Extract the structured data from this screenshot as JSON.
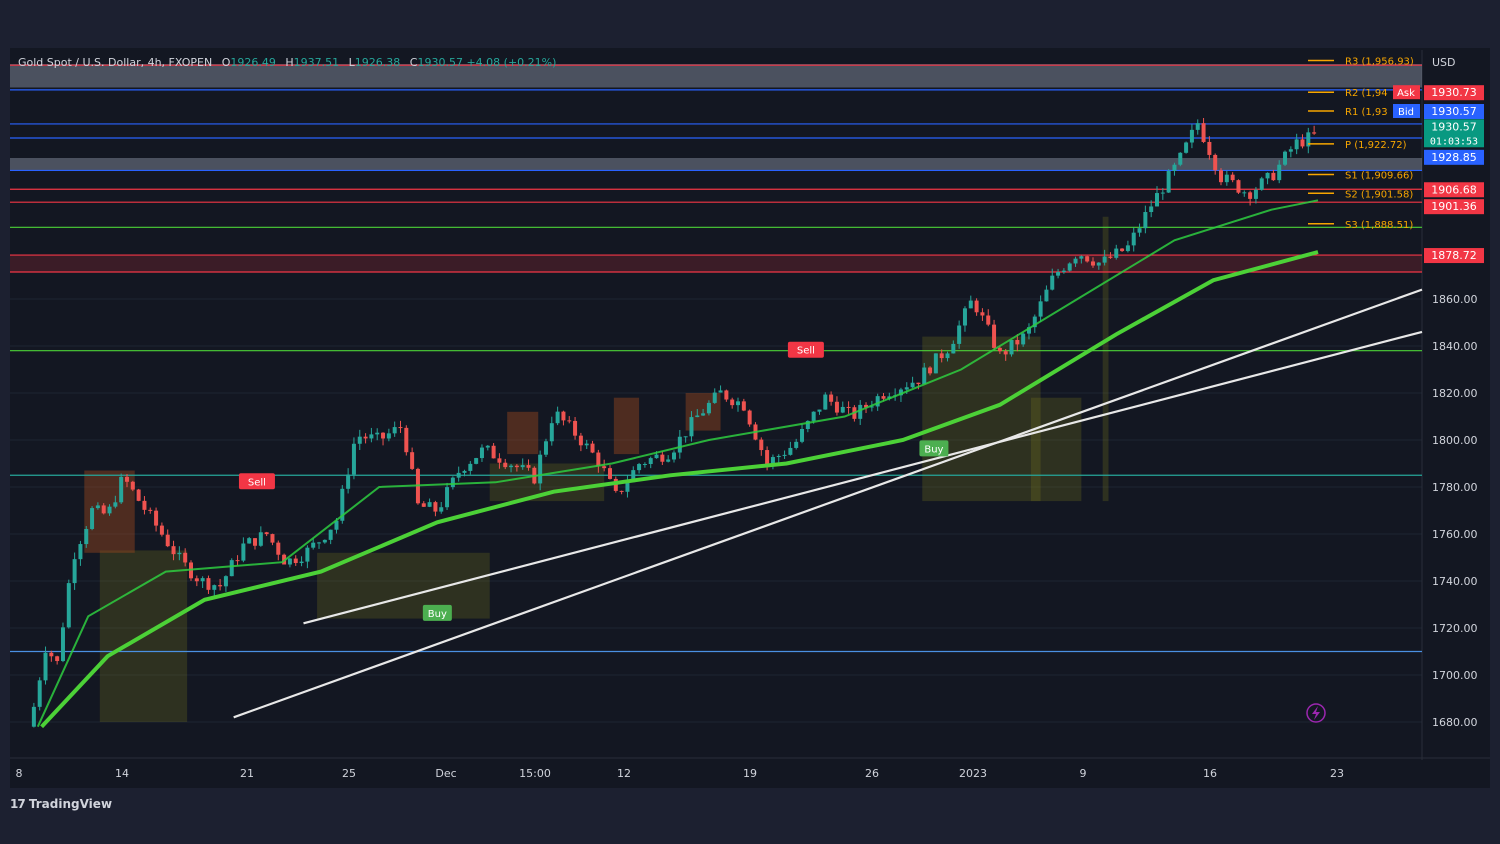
{
  "header": {
    "symbol": "Gold Spot / U.S. Dollar, 4h, FXOPEN",
    "open_label": "O",
    "open": "1926.49",
    "high_label": "H",
    "high": "1937.51",
    "low_label": "L",
    "low": "1926.38",
    "close_label": "C",
    "close": "1930.57",
    "change": "+4.08 (+0.21%)"
  },
  "currency": "USD",
  "brand": {
    "logo": "17",
    "name": "TradingView"
  },
  "colors": {
    "background": "#131722",
    "frame": "#1c2030",
    "up": "#26a69a",
    "down": "#ef5350",
    "resistance": "#f23645",
    "support_blue": "#2962ff",
    "pivot": "#f7a600",
    "ema": "#4cd137"
  },
  "chart_data": {
    "type": "line",
    "title": "Gold Spot / U.S. Dollar, 4h, FXOPEN",
    "x_ticks": [
      "8",
      "14",
      "21",
      "25",
      "Dec",
      "15:00",
      "12",
      "19",
      "26",
      "2023",
      "9",
      "16",
      "23"
    ],
    "y_ticks": [
      1680,
      1700,
      1720,
      1740,
      1760,
      1780,
      1800,
      1820,
      1840,
      1860
    ],
    "ylim": [
      1678,
      1970
    ],
    "price_path": [
      [
        0,
        1678
      ],
      [
        8,
        1712
      ],
      [
        14,
        1705
      ],
      [
        22,
        1750
      ],
      [
        32,
        1770
      ],
      [
        40,
        1768
      ],
      [
        48,
        1784
      ],
      [
        58,
        1772
      ],
      [
        68,
        1760
      ],
      [
        78,
        1748
      ],
      [
        88,
        1740
      ],
      [
        98,
        1738
      ],
      [
        110,
        1755
      ],
      [
        122,
        1760
      ],
      [
        132,
        1748
      ],
      [
        142,
        1752
      ],
      [
        150,
        1758
      ],
      [
        158,
        1766
      ],
      [
        168,
        1802
      ],
      [
        180,
        1800
      ],
      [
        192,
        1806
      ],
      [
        200,
        1772
      ],
      [
        210,
        1770
      ],
      [
        222,
        1788
      ],
      [
        234,
        1796
      ],
      [
        248,
        1790
      ],
      [
        260,
        1784
      ],
      [
        270,
        1812
      ],
      [
        282,
        1802
      ],
      [
        294,
        1790
      ],
      [
        302,
        1776
      ],
      [
        314,
        1790
      ],
      [
        330,
        1795
      ],
      [
        344,
        1810
      ],
      [
        356,
        1820
      ],
      [
        368,
        1815
      ],
      [
        380,
        1790
      ],
      [
        394,
        1798
      ],
      [
        410,
        1818
      ],
      [
        424,
        1810
      ],
      [
        440,
        1820
      ],
      [
        458,
        1826
      ],
      [
        474,
        1840
      ],
      [
        486,
        1860
      ],
      [
        500,
        1836
      ],
      [
        514,
        1845
      ],
      [
        528,
        1870
      ],
      [
        540,
        1880
      ],
      [
        552,
        1875
      ],
      [
        566,
        1882
      ],
      [
        578,
        1900
      ],
      [
        592,
        1918
      ],
      [
        602,
        1935
      ],
      [
        614,
        1912
      ],
      [
        628,
        1905
      ],
      [
        640,
        1912
      ],
      [
        652,
        1926
      ],
      [
        664,
        1930
      ]
    ],
    "series": [
      {
        "name": "",
        "values": [
          [
            6,
            1678
          ],
          [
            40,
            1708
          ],
          [
            90,
            1732
          ],
          [
            150,
            1744
          ],
          [
            210,
            1765
          ],
          [
            270,
            1778
          ],
          [
            330,
            1785
          ],
          [
            390,
            1790
          ],
          [
            450,
            1800
          ],
          [
            500,
            1815
          ],
          [
            560,
            1845
          ],
          [
            610,
            1868
          ],
          [
            664,
            1880
          ]
        ]
      },
      {
        "name": "",
        "values": [
          [
            4,
            1678
          ],
          [
            30,
            1725
          ],
          [
            70,
            1744
          ],
          [
            130,
            1748
          ],
          [
            180,
            1780
          ],
          [
            240,
            1782
          ],
          [
            300,
            1790
          ],
          [
            350,
            1800
          ],
          [
            420,
            1810
          ],
          [
            480,
            1830
          ],
          [
            540,
            1860
          ],
          [
            590,
            1885
          ],
          [
            640,
            1898
          ],
          [
            664,
            1902
          ]
        ]
      }
    ],
    "trend_lines": [
      {
        "from": [
          105,
          1682
        ],
        "to": [
          664,
          1850
        ]
      },
      {
        "from": [
          141,
          1722
        ],
        "to": [
          664,
          1832
        ]
      }
    ],
    "horizontal_levels": [
      {
        "price": 1959.5,
        "color": "#f23645"
      },
      {
        "price": 1949,
        "color": "#2962ff"
      },
      {
        "price": 1934.5,
        "color": "#2962ff"
      },
      {
        "price": 1928.5,
        "color": "#2962ff"
      },
      {
        "price": 1914.7,
        "color": "#2962ff"
      },
      {
        "price": 1906.7,
        "color": "#f23645"
      },
      {
        "price": 1901.2,
        "color": "#f23645"
      },
      {
        "price": 1890.5,
        "color": "#4cd137"
      },
      {
        "price": 1878.7,
        "color": "#f23645"
      },
      {
        "price": 1871.5,
        "color": "#f23645"
      },
      {
        "price": 1838,
        "color": "#4cd137"
      },
      {
        "price": 1785,
        "color": "#26a69a"
      },
      {
        "price": 1710,
        "color": "#4a90e2"
      }
    ],
    "pivots": [
      {
        "label": "R3 (1,956.93)",
        "price": 1961.5
      },
      {
        "label": "R2 (1,94",
        "price": 1948
      },
      {
        "label": "R1 (1,93",
        "price": 1940
      },
      {
        "label": "P (1,922.72)",
        "price": 1926
      },
      {
        "label": "S1 (1,909.66)",
        "price": 1913
      },
      {
        "label": "S2 (1,901.58)",
        "price": 1905
      },
      {
        "label": "S3 (1,888.51)",
        "price": 1892
      }
    ],
    "signals": [
      {
        "label": "Sell",
        "x": 117,
        "price": 1782,
        "type": "sell"
      },
      {
        "label": "Buy",
        "x": 210,
        "price": 1726,
        "type": "buy"
      },
      {
        "label": "Sell",
        "x": 400,
        "price": 1838,
        "type": "sell"
      },
      {
        "label": "Buy",
        "x": 466,
        "price": 1796,
        "type": "buy"
      }
    ],
    "price_labels": [
      {
        "text": "Ask",
        "price": 1948,
        "color": "#f23645",
        "side": "mid"
      },
      {
        "text": "Bid",
        "price": 1940,
        "color": "#2962ff",
        "side": "mid"
      },
      {
        "text": "1930.73",
        "price": 1948,
        "color": "#f23645"
      },
      {
        "text": "1930.57",
        "price": 1940,
        "color": "#2962ff"
      },
      {
        "text": "1930.57",
        "price": 1933.5,
        "color": "#089981",
        "sub": "01:03:53"
      },
      {
        "text": "1928.85",
        "price": 1920.5,
        "color": "#2962ff"
      },
      {
        "text": "1906.68",
        "price": 1906.7,
        "color": "#f23645"
      },
      {
        "text": "1901.36",
        "price": 1899.5,
        "color": "#f23645"
      },
      {
        "text": "1878.72",
        "price": 1878.7,
        "color": "#f23645"
      }
    ]
  }
}
